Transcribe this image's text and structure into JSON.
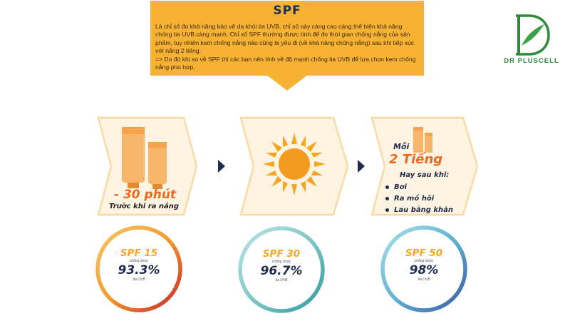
{
  "info": {
    "title": "SPF",
    "paragraph1": "Là chỉ số đo khả năng bảo vệ da khỏi tia UVB, chỉ số này càng cao càng thể hiện khả năng chống tia UVB càng mạnh. Chỉ số SPF thường được tính để đo thời gian chống nắng của sản phẩm, tuy nhiên kem chống nắng nào cũng bị yếu đi (về khả năng chống nắng) sau khi tiếp xúc với nắng 2 tiếng.",
    "paragraph2": "=> Do đó khi so về SPF thì các bạn nên tính về độ mạnh chống tia UVB để lựa chọn kem chống nắng phù hợp."
  },
  "brand": {
    "name": "DR PLUSCELL",
    "logo_letter": "D"
  },
  "steps": [
    {
      "big": "- 30 phút",
      "small": "Trước khi ra nắng"
    },
    {
      "icon": "sun-icon"
    },
    {
      "prefix": "Mỗi",
      "big": "2 Tiếng",
      "sub": "Hay sau khi:",
      "bullets": [
        "Bơi",
        "Ra mồ hôi",
        "Lau bằng khăn"
      ]
    }
  ],
  "rings": [
    {
      "spf": "SPF 15",
      "sub": "chống được",
      "pct": "93.3%",
      "unit": "tia UVB"
    },
    {
      "spf": "SPF 30",
      "sub": "chống được",
      "pct": "96.7%",
      "unit": "tia UVB"
    },
    {
      "spf": "SPF 50",
      "sub": "chống được",
      "pct": "98%",
      "unit": "tia UVB"
    }
  ],
  "colors": {
    "accent": "#f8b233",
    "navy": "#1e2d4d",
    "brand_green": "#2c8a39",
    "chevron_fill": "#fff4e2",
    "chevron_border": "#fbd9a3"
  }
}
